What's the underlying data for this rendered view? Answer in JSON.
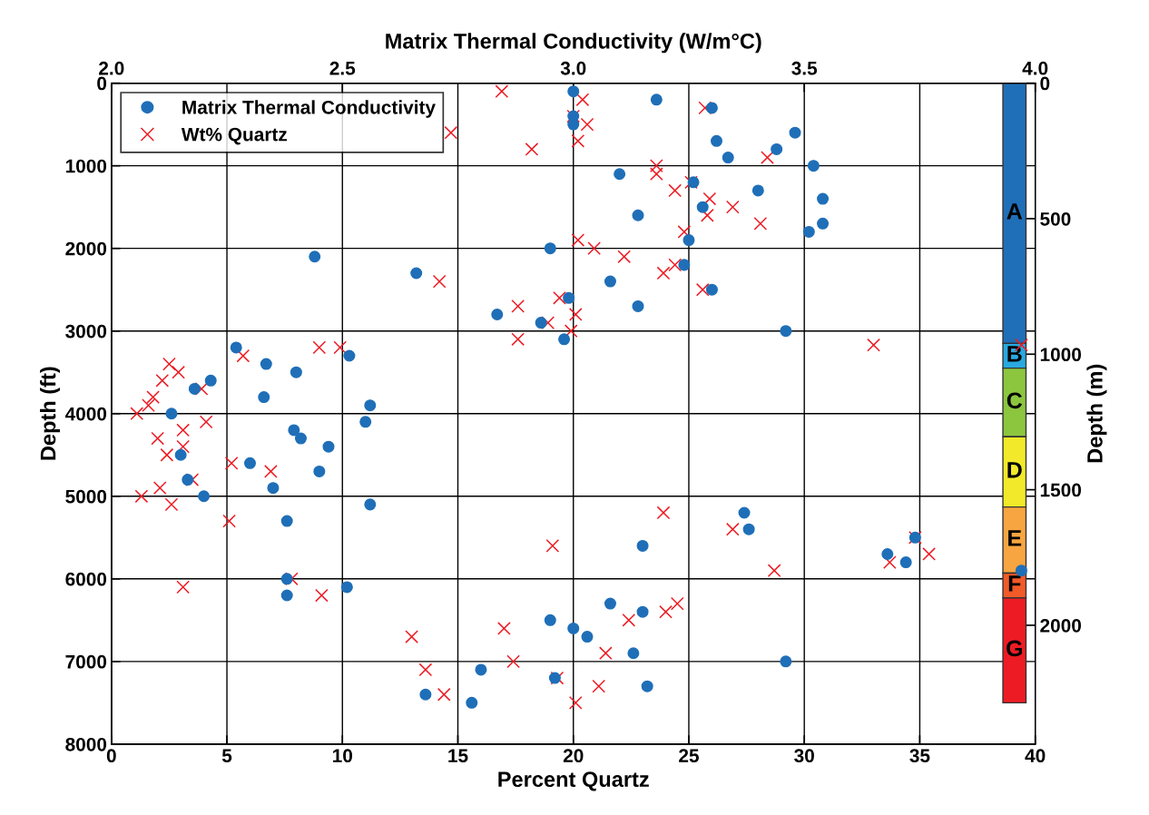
{
  "chart_data": {
    "type": "scatter",
    "x2label": "Matrix Thermal Conductivity (W/m°C)",
    "xlabel": "Percent Quartz",
    "ylabel": "Depth (ft)",
    "y2label": "Depth (m)",
    "xlim": [
      0,
      40
    ],
    "xticks": [
      0,
      5,
      10,
      15,
      20,
      25,
      30,
      35,
      40
    ],
    "x2lim": [
      2.0,
      4.0
    ],
    "x2ticks": [
      {
        "value": 2.0,
        "label": "2.0"
      },
      {
        "value": 2.5,
        "label": "2.5"
      },
      {
        "value": 3.0,
        "label": "3.0"
      },
      {
        "value": 3.5,
        "label": "3.5"
      },
      {
        "value": 4.0,
        "label": "4.0"
      }
    ],
    "ylim": [
      8000,
      0
    ],
    "yticks": [
      0,
      1000,
      2000,
      3000,
      4000,
      5000,
      6000,
      7000,
      8000
    ],
    "y2lim": [
      2438.4,
      0
    ],
    "y2ticks": [
      0,
      500,
      1000,
      1500,
      2000
    ],
    "grid": true,
    "legend": "top left",
    "series": [
      {
        "name": "Matrix Thermal Conductivity",
        "color": "#1f6fb8",
        "marker": "circle",
        "axis": "x2",
        "x": [
          3.0,
          3.18,
          3.3,
          3.0,
          3.0,
          3.31,
          3.44,
          3.48,
          3.335,
          3.52,
          3.1,
          3.26,
          3.4,
          3.54,
          3.28,
          3.14,
          3.54,
          3.51,
          3.25,
          2.95,
          2.44,
          3.24,
          2.66,
          3.08,
          3.3,
          2.99,
          3.14,
          2.835,
          2.93,
          3.46,
          2.98,
          2.27,
          2.515,
          2.335,
          2.4,
          2.215,
          2.18,
          2.33,
          2.56,
          2.13,
          2.55,
          2.395,
          2.41,
          2.47,
          2.15,
          2.3,
          2.45,
          2.165,
          2.35,
          2.2,
          2.56,
          3.37,
          2.38,
          3.38,
          3.74,
          3.15,
          3.68,
          3.72,
          3.97,
          2.38,
          2.51,
          2.38,
          3.08,
          3.15,
          2.95,
          3.0,
          3.03,
          3.13,
          3.46,
          2.8,
          2.96,
          3.16,
          2.68,
          2.78
        ],
        "values": [
          100,
          200,
          300,
          400,
          500,
          700,
          800,
          600,
          900,
          1000,
          1100,
          1200,
          1300,
          1400,
          1500,
          1600,
          1700,
          1800,
          1900,
          2000,
          2100,
          2200,
          2300,
          2400,
          2500,
          2600,
          2700,
          2800,
          2900,
          3000,
          3100,
          3200,
          3300,
          3400,
          3500,
          3600,
          3700,
          3800,
          3900,
          4000,
          4100,
          4200,
          4300,
          4400,
          4500,
          4600,
          4700,
          4800,
          4900,
          5000,
          5100,
          5200,
          5300,
          5400,
          5500,
          5600,
          5700,
          5800,
          5900,
          6000,
          6100,
          6200,
          6300,
          6400,
          6500,
          6600,
          6700,
          6900,
          7000,
          7100,
          7200,
          7300,
          7400,
          7500
        ]
      },
      {
        "name": "Wt% Quartz",
        "color": "#ed1c24",
        "marker": "cross",
        "x": [
          16.9,
          20.4,
          25.7,
          20.0,
          20.6,
          14.7,
          20.2,
          18.2,
          28.4,
          23.6,
          23.6,
          25.1,
          24.4,
          25.9,
          26.9,
          25.8,
          28.1,
          24.8,
          20.2,
          20.9,
          22.2,
          24.4,
          23.9,
          14.2,
          25.6,
          19.4,
          17.6,
          20.1,
          18.9,
          19.9,
          17.6,
          9.0,
          9.9,
          33.0,
          39.4,
          5.7,
          2.5,
          2.9,
          2.2,
          3.9,
          1.8,
          1.6,
          1.1,
          4.1,
          3.1,
          2.0,
          3.1,
          2.4,
          5.2,
          6.9,
          3.5,
          2.1,
          1.3,
          2.6,
          23.9,
          5.1,
          26.9,
          34.8,
          19.1,
          35.4,
          33.7,
          28.7,
          7.8,
          3.1,
          9.1,
          24.5,
          24.0,
          22.4,
          17.0,
          13.0,
          21.4,
          17.4,
          13.6,
          19.3,
          21.1,
          14.4,
          20.1
        ],
        "values": [
          100,
          200,
          300,
          400,
          500,
          600,
          700,
          800,
          900,
          1000,
          1100,
          1200,
          1300,
          1400,
          1500,
          1600,
          1700,
          1800,
          1900,
          2000,
          2100,
          2200,
          2300,
          2400,
          2500,
          2600,
          2700,
          2800,
          2900,
          3000,
          3100,
          3200,
          3200,
          3170,
          3170,
          3300,
          3400,
          3500,
          3600,
          3700,
          3800,
          3900,
          4000,
          4100,
          4200,
          4300,
          4400,
          4500,
          4600,
          4700,
          4800,
          4900,
          5000,
          5100,
          5200,
          5300,
          5400,
          5500,
          5600,
          5700,
          5800,
          5900,
          6000,
          6100,
          6200,
          6300,
          6400,
          6500,
          6600,
          6700,
          6900,
          7000,
          7100,
          7200,
          7300,
          7400,
          7500
        ]
      },
      {
        "name": "A",
        "type": "bar",
        "color": "#1f6fb8",
        "x": [
          39.1
        ],
        "values": [
          3150
        ]
      },
      {
        "name": "B",
        "type": "bar",
        "color": "#29a9e0",
        "x": [
          39.1
        ],
        "values": [
          300
        ]
      },
      {
        "name": "C",
        "type": "bar",
        "color": "#8cc63f",
        "x": [
          39.1
        ],
        "values": [
          830
        ]
      },
      {
        "name": "D",
        "type": "bar",
        "color": "#f2e92a",
        "x": [
          39.1
        ],
        "values": [
          850
        ]
      },
      {
        "name": "E",
        "type": "bar",
        "color": "#f7a541",
        "x": [
          39.1
        ],
        "values": [
          800
        ]
      },
      {
        "name": "F",
        "type": "bar",
        "color": "#f15a29",
        "x": [
          39.1
        ],
        "values": [
          300
        ]
      },
      {
        "name": "G",
        "type": "bar",
        "color": "#ed1c24",
        "x": [
          39.1
        ],
        "values": [
          1270
        ]
      }
    ],
    "stacked": true
  }
}
